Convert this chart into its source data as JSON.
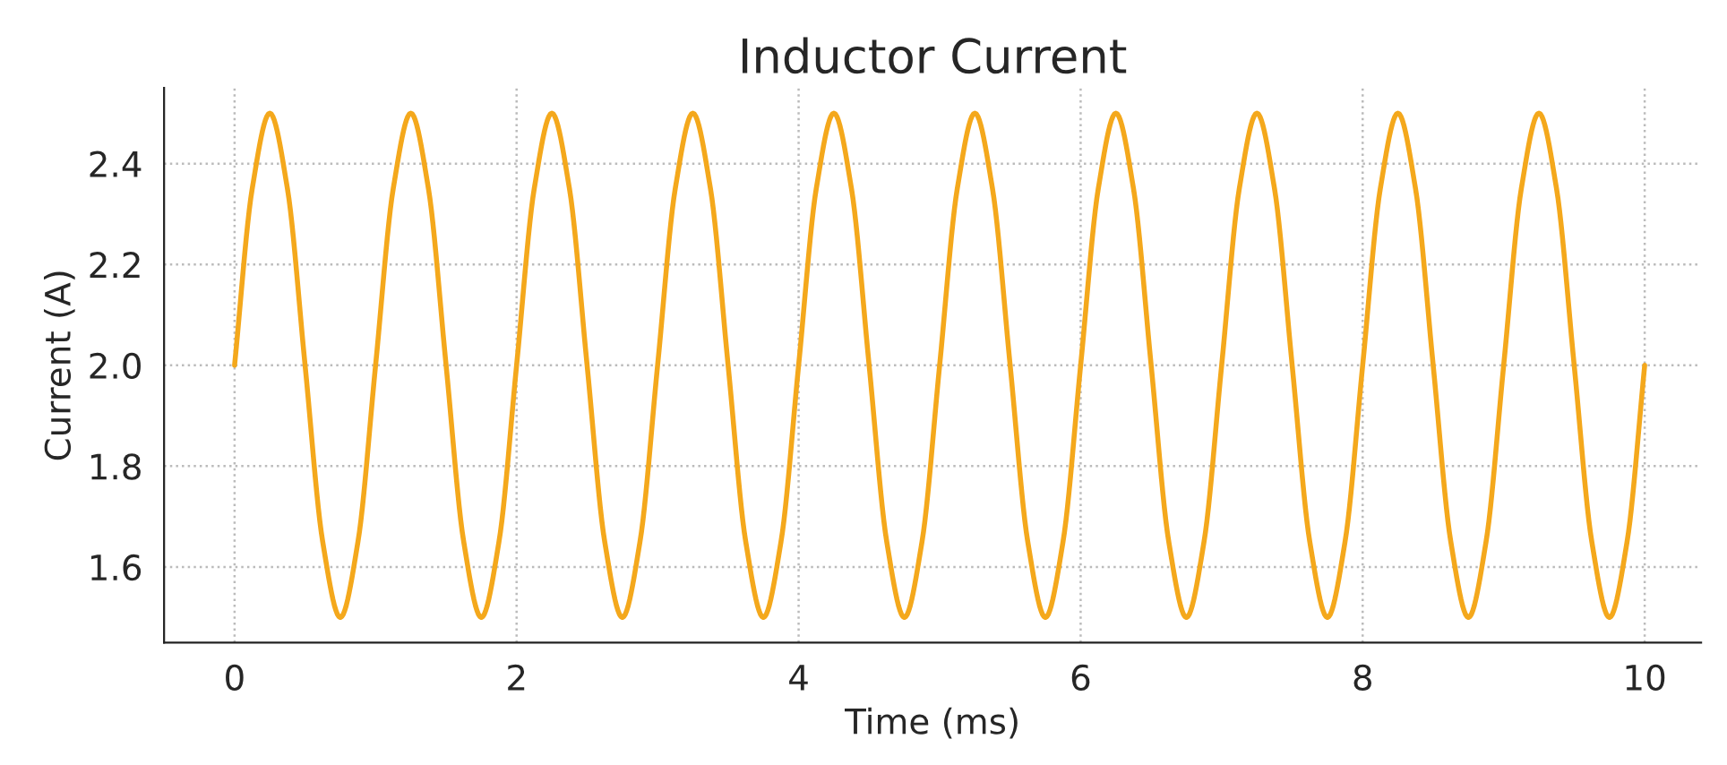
{
  "chart_data": {
    "type": "line",
    "title": "Inductor Current",
    "xlabel": "Time (ms)",
    "ylabel": "Current (A)",
    "x": [
      0,
      0.125,
      0.25,
      0.375,
      0.5,
      0.625,
      0.75,
      0.875,
      1,
      1.125,
      1.25,
      1.375,
      1.5,
      1.625,
      1.75,
      1.875,
      2,
      2.125,
      2.25,
      2.375,
      2.5,
      2.625,
      2.75,
      2.875,
      3,
      3.125,
      3.25,
      3.375,
      3.5,
      3.625,
      3.75,
      3.875,
      4,
      4.125,
      4.25,
      4.375,
      4.5,
      4.625,
      4.75,
      4.875,
      5,
      5.125,
      5.25,
      5.375,
      5.5,
      5.625,
      5.75,
      5.875,
      6,
      6.125,
      6.25,
      6.375,
      6.5,
      6.625,
      6.75,
      6.875,
      7,
      7.125,
      7.25,
      7.375,
      7.5,
      7.625,
      7.75,
      7.875,
      8,
      8.125,
      8.25,
      8.375,
      8.5,
      8.625,
      8.75,
      8.875,
      9,
      9.125,
      9.25,
      9.375,
      9.5,
      9.625,
      9.75,
      9.875,
      10
    ],
    "series": [
      {
        "color": "#f4a81c",
        "values": [
          2.0,
          2.35,
          2.5,
          2.35,
          2.0,
          1.65,
          1.5,
          1.65,
          2.0,
          2.35,
          2.5,
          2.35,
          2.0,
          1.65,
          1.5,
          1.65,
          2.0,
          2.35,
          2.5,
          2.35,
          2.0,
          1.65,
          1.5,
          1.65,
          2.0,
          2.35,
          2.5,
          2.35,
          2.0,
          1.65,
          1.5,
          1.65,
          2.0,
          2.35,
          2.5,
          2.35,
          2.0,
          1.65,
          1.5,
          1.65,
          2.0,
          2.35,
          2.5,
          2.35,
          2.0,
          1.65,
          1.5,
          1.65,
          2.0,
          2.35,
          2.5,
          2.35,
          2.0,
          1.65,
          1.5,
          1.65,
          2.0,
          2.35,
          2.5,
          2.35,
          2.0,
          1.65,
          1.5,
          1.65,
          2.0,
          2.35,
          2.5,
          2.35,
          2.0,
          1.65,
          1.5,
          1.65,
          2.0,
          2.35,
          2.5,
          2.35,
          2.0,
          1.65,
          1.5,
          1.65,
          2.0
        ]
      }
    ],
    "xlim": [
      -0.5,
      10.4
    ],
    "ylim": [
      1.45,
      2.55
    ],
    "xticks": [
      0,
      2,
      4,
      6,
      8,
      10
    ],
    "yticks": [
      {
        "value": 1.6,
        "label": "1.6"
      },
      {
        "value": 1.8,
        "label": "1.8"
      },
      {
        "value": 2.0,
        "label": "2.0"
      },
      {
        "value": 2.2,
        "label": "2.2"
      },
      {
        "value": 2.4,
        "label": "2.4"
      }
    ],
    "grid": true,
    "marker": "none",
    "line_style": "solid"
  }
}
